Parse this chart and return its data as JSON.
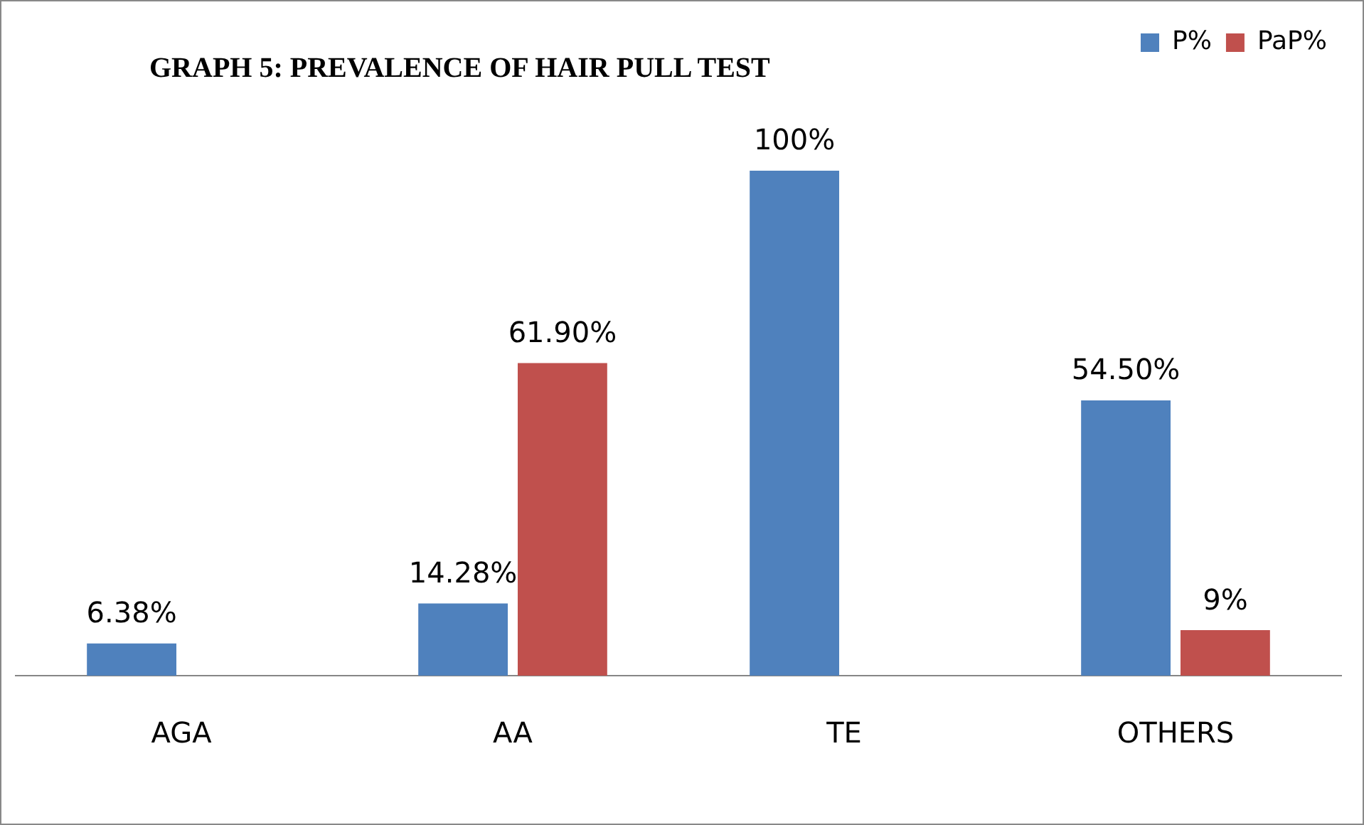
{
  "chart_data": {
    "type": "bar",
    "title": "GRAPH 5: PREVALENCE OF HAIR PULL TEST",
    "categories": [
      "AGA",
      "AA",
      "TE",
      "OTHERS"
    ],
    "series": [
      {
        "name": "P%",
        "color": "#4f81bd",
        "values": [
          6.38,
          14.28,
          100,
          54.5
        ],
        "value_labels": [
          "6.38%",
          "14.28%",
          "100%",
          "54.50%"
        ]
      },
      {
        "name": "PaP%",
        "color": "#c0504d",
        "values": [
          null,
          61.9,
          null,
          9
        ],
        "value_labels": [
          null,
          "61.90%",
          null,
          "9%"
        ]
      }
    ],
    "legend": "top right",
    "grid": false
  }
}
